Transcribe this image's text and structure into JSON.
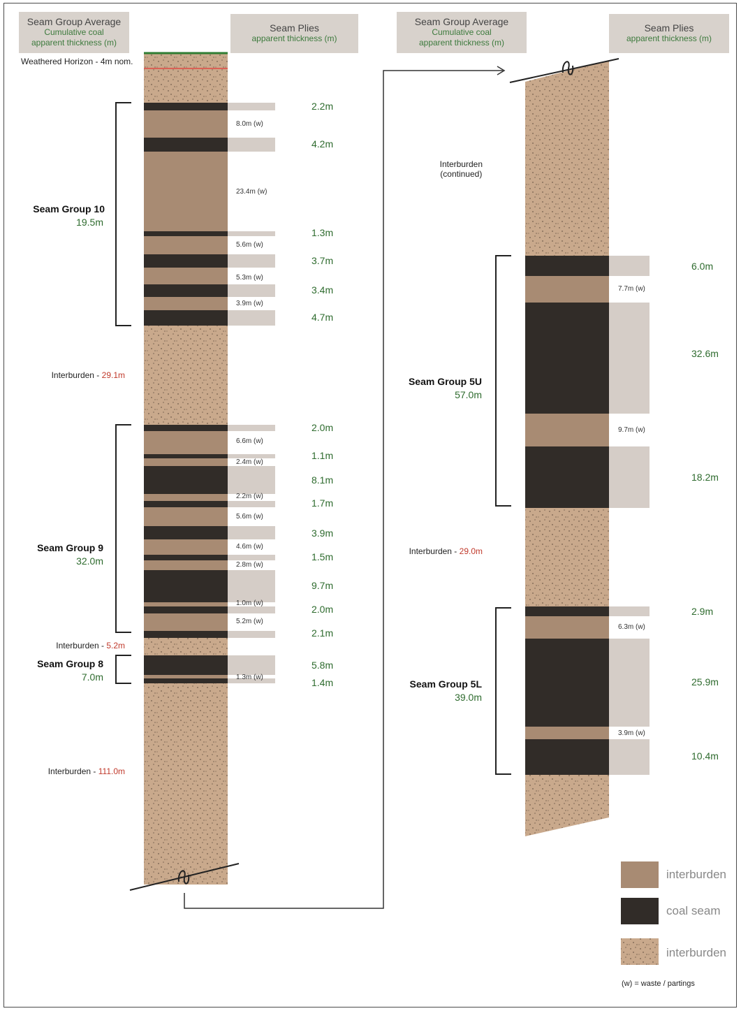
{
  "headers": {
    "left_group": {
      "title": "Seam Group Average",
      "line2": "Cumulative coal",
      "line3": "apparent thickness (m)"
    },
    "left_plies": {
      "title": "Seam Plies",
      "line2": "apparent thickness (m)"
    },
    "right_group": {
      "title": "Seam Group Average",
      "line2": "Cumulative coal",
      "line3": "apparent thickness (m)"
    },
    "right_plies": {
      "title": "Seam Plies",
      "line2": "apparent thickness (m)"
    }
  },
  "weathered": "Weathered Horizon - 4m nom.",
  "left_plies": [
    {
      "text": "2.2m"
    },
    {
      "text": "4.2m"
    },
    {
      "text": "1.3m"
    },
    {
      "text": "3.7m"
    },
    {
      "text": "3.4m"
    },
    {
      "text": "4.7m"
    },
    {
      "text": "2.0m"
    },
    {
      "text": "1.1m"
    },
    {
      "text": "8.1m"
    },
    {
      "text": "1.7m"
    },
    {
      "text": "3.9m"
    },
    {
      "text": "1.5m"
    },
    {
      "text": "9.7m"
    },
    {
      "text": "2.0m"
    },
    {
      "text": "2.1m"
    },
    {
      "text": "5.8m"
    },
    {
      "text": "1.4m"
    }
  ],
  "left_waste": [
    {
      "text": "8.0m (w)"
    },
    {
      "text": "23.4m (w)"
    },
    {
      "text": "5.6m (w)"
    },
    {
      "text": "5.3m (w)"
    },
    {
      "text": "3.9m (w)"
    },
    {
      "text": "6.6m (w)"
    },
    {
      "text": "2.4m (w)"
    },
    {
      "text": "2.2m (w)"
    },
    {
      "text": "5.6m (w)"
    },
    {
      "text": "4.6m (w)"
    },
    {
      "text": "2.8m (w)"
    },
    {
      "text": "1.0m (w)"
    },
    {
      "text": "5.2m (w)"
    },
    {
      "text": "1.3m (w)"
    }
  ],
  "right_plies": [
    {
      "text": "6.0m"
    },
    {
      "text": "32.6m"
    },
    {
      "text": "18.2m"
    },
    {
      "text": "2.9m"
    },
    {
      "text": "25.9m"
    },
    {
      "text": "10.4m"
    }
  ],
  "right_waste": [
    {
      "text": "7.7m (w)"
    },
    {
      "text": "9.7m (w)"
    },
    {
      "text": "6.3m (w)"
    },
    {
      "text": "3.9m (w)"
    }
  ],
  "seam_groups": {
    "g10": {
      "name": "Seam Group 10",
      "value": "19.5m"
    },
    "g9": {
      "name": "Seam Group 9",
      "value": "32.0m"
    },
    "g8": {
      "name": "Seam Group 8",
      "value": "7.0m"
    },
    "g5u": {
      "name": "Seam Group 5U",
      "value": "57.0m"
    },
    "g5l": {
      "name": "Seam Group 5L",
      "value": "39.0m"
    }
  },
  "interburden": {
    "ib1": {
      "label": "Interburden - ",
      "value": "29.1m"
    },
    "ib2": {
      "label": "Interburden - ",
      "value": "5.2m"
    },
    "ib3": {
      "label": "Interburden - ",
      "value": "111.0m"
    },
    "ib4": {
      "label": "Interburden - ",
      "value": "29.0m"
    },
    "continued_1": "Interburden",
    "continued_2": "(continued)"
  },
  "legend": {
    "interburden": "interburden",
    "coal": "coal seam",
    "interburden_dotted": "interburden",
    "note": "(w) = waste / partings"
  },
  "colors": {
    "interburden": "#a88b73",
    "coal": "#312c28",
    "sand": "#c9a98c",
    "ply": "#d5cdc7",
    "green": "#2e6b2e",
    "red": "#c0392b"
  }
}
